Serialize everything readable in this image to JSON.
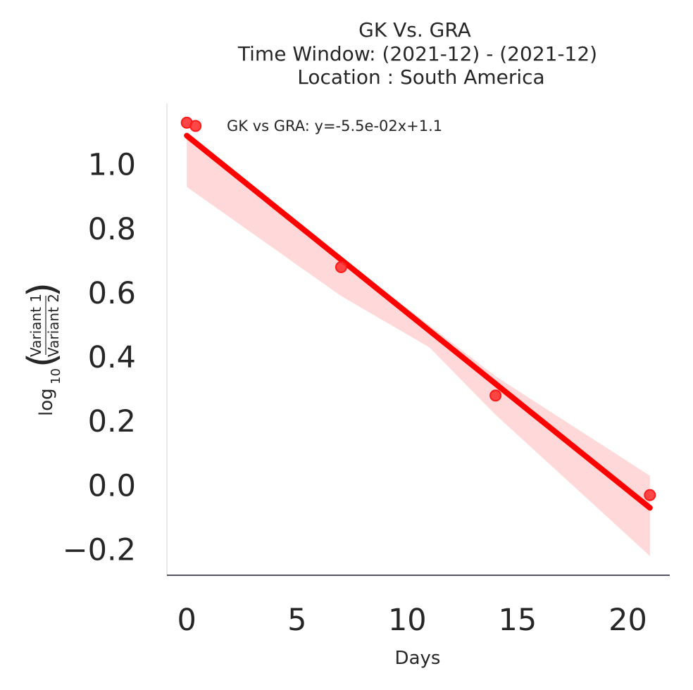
{
  "chart_data": {
    "type": "scatter",
    "title": "GK Vs. GRA",
    "subtitle_lines": [
      "Time Window: (2021-12) - (2021-12)",
      "Location : South America"
    ],
    "xlabel": "Days",
    "ylabel": {
      "prefix": "log",
      "subscript": "10",
      "numerator": "Variant 1",
      "denominator": "Variant 2"
    },
    "xlim": [
      -0.9,
      21.9
    ],
    "ylim": [
      -0.28,
      1.19
    ],
    "x_ticks": [
      0,
      5,
      10,
      15,
      20
    ],
    "x_tick_labels": [
      "0",
      "5",
      "10",
      "15",
      "20"
    ],
    "y_ticks": [
      -0.2,
      0.0,
      0.2,
      0.4,
      0.6,
      0.8,
      1.0
    ],
    "y_tick_labels": [
      "−0.2",
      "0.0",
      "0.2",
      "0.4",
      "0.6",
      "0.8",
      "1.0"
    ],
    "grid": false,
    "legend_position": "top-right",
    "series": [
      {
        "name": "GK vs GRA: y=-5.5e-02x+1.1",
        "color": "#ff0000",
        "points": [
          {
            "x": 0,
            "y": 1.13
          },
          {
            "x": 0.4,
            "y": 1.12
          },
          {
            "x": 7,
            "y": 0.68
          },
          {
            "x": 14,
            "y": 0.28
          },
          {
            "x": 21,
            "y": -0.03
          }
        ],
        "fit": {
          "x0": 0,
          "y0": 1.09,
          "x1": 21,
          "y1": -0.07
        },
        "confidence_band": {
          "upper": [
            {
              "x": 0,
              "y": 1.1
            },
            {
              "x": 7,
              "y": 0.71
            },
            {
              "x": 14,
              "y": 0.34
            },
            {
              "x": 21,
              "y": 0.03
            }
          ],
          "lower": [
            {
              "x": 0,
              "y": 0.93
            },
            {
              "x": 7,
              "y": 0.59
            },
            {
              "x": 11,
              "y": 0.43
            },
            {
              "x": 14,
              "y": 0.22
            },
            {
              "x": 21,
              "y": -0.22
            }
          ]
        }
      }
    ]
  }
}
